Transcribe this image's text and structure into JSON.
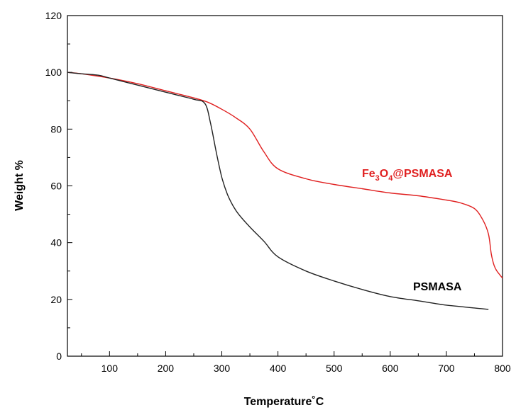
{
  "chart_data": {
    "type": "line",
    "xlabel": "Temperature˚C",
    "ylabel": "Weight %",
    "xlim": [
      25,
      800
    ],
    "ylim": [
      0,
      120
    ],
    "xticks": [
      100,
      200,
      300,
      400,
      500,
      600,
      700,
      800
    ],
    "yticks": [
      0,
      20,
      40,
      60,
      80,
      100,
      120
    ],
    "grid": false,
    "series": [
      {
        "name": "Fe3O4@PSMASA",
        "color": "#e02020",
        "x": [
          25,
          50,
          100,
          150,
          200,
          250,
          275,
          300,
          325,
          350,
          375,
          400,
          450,
          500,
          550,
          600,
          650,
          700,
          725,
          750,
          765,
          775,
          780,
          785,
          790,
          800
        ],
        "y": [
          100,
          99.5,
          98,
          96,
          93.5,
          91,
          89.5,
          87,
          84,
          80,
          72,
          66,
          62.5,
          60.5,
          59,
          57.5,
          56.5,
          55,
          54,
          52,
          48,
          43,
          36,
          32,
          30,
          27.5
        ]
      },
      {
        "name": "PSMASA",
        "color": "#222222",
        "x": [
          25,
          50,
          80,
          100,
          150,
          200,
          250,
          270,
          280,
          290,
          300,
          310,
          320,
          330,
          350,
          375,
          400,
          450,
          500,
          550,
          600,
          650,
          700,
          750,
          775
        ],
        "y": [
          100,
          99.5,
          99,
          98,
          95.5,
          93,
          90.5,
          89,
          82,
          72,
          63,
          57,
          53,
          50,
          45.5,
          40.5,
          35,
          30,
          26.5,
          23.5,
          21,
          19.5,
          18,
          17,
          16.5
        ]
      }
    ],
    "annotations": [
      {
        "series": "Fe3O4@PSMASA",
        "parts": [
          "Fe",
          "3",
          "O",
          "4",
          "@PSMASA"
        ]
      },
      {
        "series": "PSMASA",
        "parts": [
          "PSMASA"
        ]
      }
    ]
  }
}
